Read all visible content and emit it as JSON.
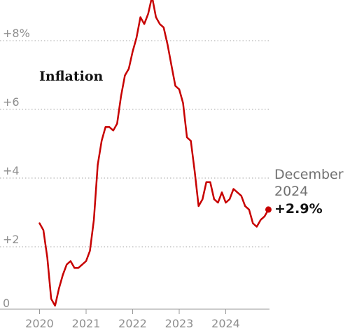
{
  "chart_data": {
    "type": "line",
    "title": "Inflation",
    "xlabel": "",
    "ylabel": "",
    "y_tick_labels": [
      "0",
      "+2",
      "+4",
      "+6",
      "+8%"
    ],
    "y_ticks": [
      0,
      2,
      4,
      6,
      8
    ],
    "x_tick_labels": [
      "2020",
      "2021",
      "2022",
      "2023",
      "2024"
    ],
    "x_ticks": [
      "2020-01",
      "2021-01",
      "2022-01",
      "2023-01",
      "2024-01"
    ],
    "xlim": [
      "2020-01",
      "2024-12"
    ],
    "ylim": [
      0,
      9
    ],
    "grid": true,
    "series": [
      {
        "color": "#c70000",
        "x": [
          "2020-01",
          "2020-02",
          "2020-03",
          "2020-04",
          "2020-05",
          "2020-06",
          "2020-07",
          "2020-08",
          "2020-09",
          "2020-10",
          "2020-11",
          "2020-12",
          "2021-01",
          "2021-02",
          "2021-03",
          "2021-04",
          "2021-05",
          "2021-06",
          "2021-07",
          "2021-08",
          "2021-09",
          "2021-10",
          "2021-11",
          "2021-12",
          "2022-01",
          "2022-02",
          "2022-03",
          "2022-04",
          "2022-05",
          "2022-06",
          "2022-07",
          "2022-08",
          "2022-09",
          "2022-10",
          "2022-11",
          "2022-12",
          "2023-01",
          "2023-02",
          "2023-03",
          "2023-04",
          "2023-05",
          "2023-06",
          "2023-07",
          "2023-08",
          "2023-09",
          "2023-10",
          "2023-11",
          "2023-12",
          "2024-01",
          "2024-02",
          "2024-03",
          "2024-04",
          "2024-05",
          "2024-06",
          "2024-07",
          "2024-08",
          "2024-09",
          "2024-10",
          "2024-11",
          "2024-12"
        ],
        "values": [
          2.5,
          2.3,
          1.5,
          0.3,
          0.1,
          0.6,
          1.0,
          1.3,
          1.4,
          1.2,
          1.2,
          1.3,
          1.4,
          1.7,
          2.6,
          4.2,
          4.9,
          5.3,
          5.3,
          5.2,
          5.4,
          6.2,
          6.8,
          7.0,
          7.5,
          7.9,
          8.5,
          8.3,
          8.6,
          9.1,
          8.5,
          8.3,
          8.2,
          7.7,
          7.1,
          6.5,
          6.4,
          6.0,
          5.0,
          4.9,
          4.0,
          3.0,
          3.2,
          3.7,
          3.7,
          3.2,
          3.1,
          3.4,
          3.1,
          3.2,
          3.5,
          3.4,
          3.3,
          3.0,
          2.9,
          2.5,
          2.4,
          2.6,
          2.7,
          2.9
        ]
      }
    ],
    "annotation": {
      "month": "December",
      "year": "2024",
      "value_label": "+2.9%"
    }
  }
}
